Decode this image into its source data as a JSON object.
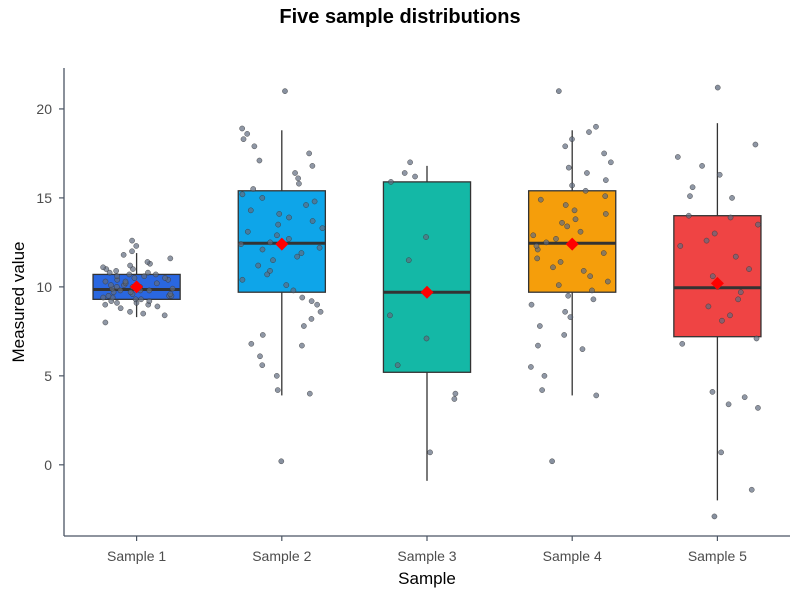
{
  "chart_data": {
    "type": "box",
    "title": "Five sample distributions",
    "xlabel": "Sample",
    "ylabel": "Measured value",
    "categories": [
      "Sample 1",
      "Sample 2",
      "Sample 3",
      "Sample 4",
      "Sample 5"
    ],
    "yticks": [
      0,
      5,
      10,
      15,
      20
    ],
    "ylim": [
      -4,
      22.3
    ],
    "colors": {
      "boxes": [
        "#2a67e0",
        "#0ea5e9",
        "#14b8a6",
        "#f59e0b",
        "#ef4444"
      ],
      "mean_marker": "#ff0000",
      "points": "#5f6b7f",
      "axis": "#4b5563",
      "median_line": "#333333"
    },
    "grid": false,
    "legend": "none",
    "boxes": [
      {
        "name": "Sample 1",
        "min": 8.3,
        "q1": 9.3,
        "median": 9.85,
        "q3": 10.7,
        "max": 11.9,
        "mean": 10.0
      },
      {
        "name": "Sample 2",
        "min": 3.9,
        "q1": 9.7,
        "median": 12.45,
        "q3": 15.4,
        "max": 18.8,
        "mean": 12.4
      },
      {
        "name": "Sample 3",
        "min": -0.9,
        "q1": 5.2,
        "median": 9.7,
        "q3": 15.9,
        "max": 16.8,
        "mean": 9.7
      },
      {
        "name": "Sample 4",
        "min": 3.9,
        "q1": 9.7,
        "median": 12.45,
        "q3": 15.4,
        "max": 18.8,
        "mean": 12.4
      },
      {
        "name": "Sample 5",
        "min": -2.0,
        "q1": 7.2,
        "median": 9.95,
        "q3": 14.0,
        "max": 19.2,
        "mean": 10.2
      }
    ],
    "outliers": [
      {
        "sample": "Sample 2",
        "values": [
          0.2,
          21.0
        ]
      },
      {
        "sample": "Sample 4",
        "values": [
          0.2,
          21.0
        ]
      },
      {
        "sample": "Sample 5",
        "values": [
          -2.9,
          21.2
        ]
      }
    ],
    "points": [
      {
        "sample": "Sample 1",
        "values": [
          8.0,
          8.4,
          8.5,
          8.6,
          8.8,
          8.9,
          9.0,
          9.0,
          9.1,
          9.1,
          9.2,
          9.2,
          9.3,
          9.3,
          9.4,
          9.4,
          9.5,
          9.5,
          9.5,
          9.6,
          9.6,
          9.7,
          9.7,
          9.8,
          9.8,
          9.8,
          9.9,
          9.9,
          10.0,
          10.0,
          10.0,
          10.1,
          10.1,
          10.2,
          10.2,
          10.3,
          10.3,
          10.4,
          10.4,
          10.5,
          10.5,
          10.6,
          10.6,
          10.7,
          10.7,
          10.8,
          10.8,
          10.9,
          11.0,
          11.0,
          11.1,
          11.2,
          11.3,
          11.4,
          11.6,
          11.8,
          12.0,
          12.3,
          12.6
        ]
      },
      {
        "sample": "Sample 2",
        "values": [
          4.0,
          4.2,
          5.0,
          5.6,
          6.1,
          6.7,
          6.8,
          7.3,
          7.8,
          8.2,
          8.6,
          9.0,
          9.2,
          9.4,
          9.8,
          10.1,
          10.4,
          10.7,
          10.9,
          11.2,
          11.5,
          11.7,
          11.9,
          12.1,
          12.2,
          12.4,
          12.5,
          12.7,
          12.9,
          13.1,
          13.3,
          13.5,
          13.7,
          13.9,
          14.1,
          14.3,
          14.6,
          14.8,
          15.0,
          15.2,
          15.5,
          15.8,
          16.1,
          16.4,
          16.8,
          17.1,
          17.5,
          17.9,
          18.3,
          18.6,
          18.9
        ]
      },
      {
        "sample": "Sample 3",
        "values": [
          0.7,
          3.7,
          4.0,
          5.6,
          7.1,
          8.4,
          11.5,
          12.8,
          15.9,
          16.2,
          16.4,
          17.0
        ]
      },
      {
        "sample": "Sample 4",
        "values": [
          3.9,
          4.2,
          5.0,
          5.5,
          6.5,
          6.7,
          7.3,
          7.8,
          8.3,
          8.6,
          9.0,
          9.3,
          9.5,
          9.8,
          10.1,
          10.3,
          10.6,
          10.9,
          11.1,
          11.4,
          11.6,
          11.9,
          12.1,
          12.3,
          12.5,
          12.7,
          12.9,
          13.1,
          13.4,
          13.6,
          13.8,
          14.1,
          14.3,
          14.6,
          14.9,
          15.1,
          15.4,
          15.7,
          16.0,
          16.4,
          16.7,
          17.0,
          17.5,
          17.9,
          18.3,
          18.7,
          19.0
        ]
      },
      {
        "sample": "Sample 5",
        "values": [
          -1.4,
          0.7,
          3.2,
          3.4,
          3.8,
          4.1,
          6.8,
          7.1,
          8.1,
          8.4,
          8.9,
          9.3,
          9.7,
          10.0,
          10.6,
          11.0,
          11.7,
          12.3,
          12.6,
          13.0,
          13.5,
          13.9,
          14.0,
          15.0,
          15.1,
          15.6,
          16.3,
          16.8,
          17.3,
          18.0
        ]
      }
    ]
  }
}
